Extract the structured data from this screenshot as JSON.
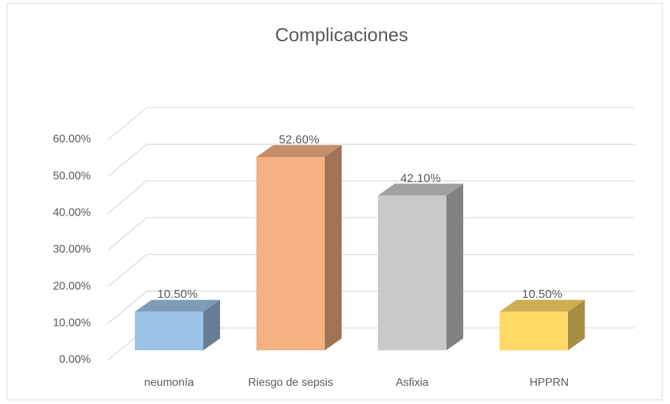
{
  "chart_data": {
    "type": "bar3d",
    "title": "Complicaciones",
    "categories": [
      "neumonía",
      "Riesgo de sepsis",
      "Asfixia",
      "HPPRN"
    ],
    "values": [
      10.5,
      52.6,
      42.1,
      10.5
    ],
    "value_labels": [
      "10.50%",
      "52.60%",
      "42.10%",
      "10.50%"
    ],
    "colors": [
      "#9dc3e6",
      "#f4b183",
      "#c9c9c9",
      "#ffd966"
    ],
    "ylim": [
      0,
      60
    ],
    "yticks": [
      {
        "value": 0,
        "label": "0.00%"
      },
      {
        "value": 10,
        "label": "10.00%"
      },
      {
        "value": 20,
        "label": "20.00%"
      },
      {
        "value": 30,
        "label": "30.00%"
      },
      {
        "value": 40,
        "label": "40.00%"
      },
      {
        "value": 50,
        "label": "50.00%"
      },
      {
        "value": 60,
        "label": "60.00%"
      }
    ],
    "grid": true
  }
}
